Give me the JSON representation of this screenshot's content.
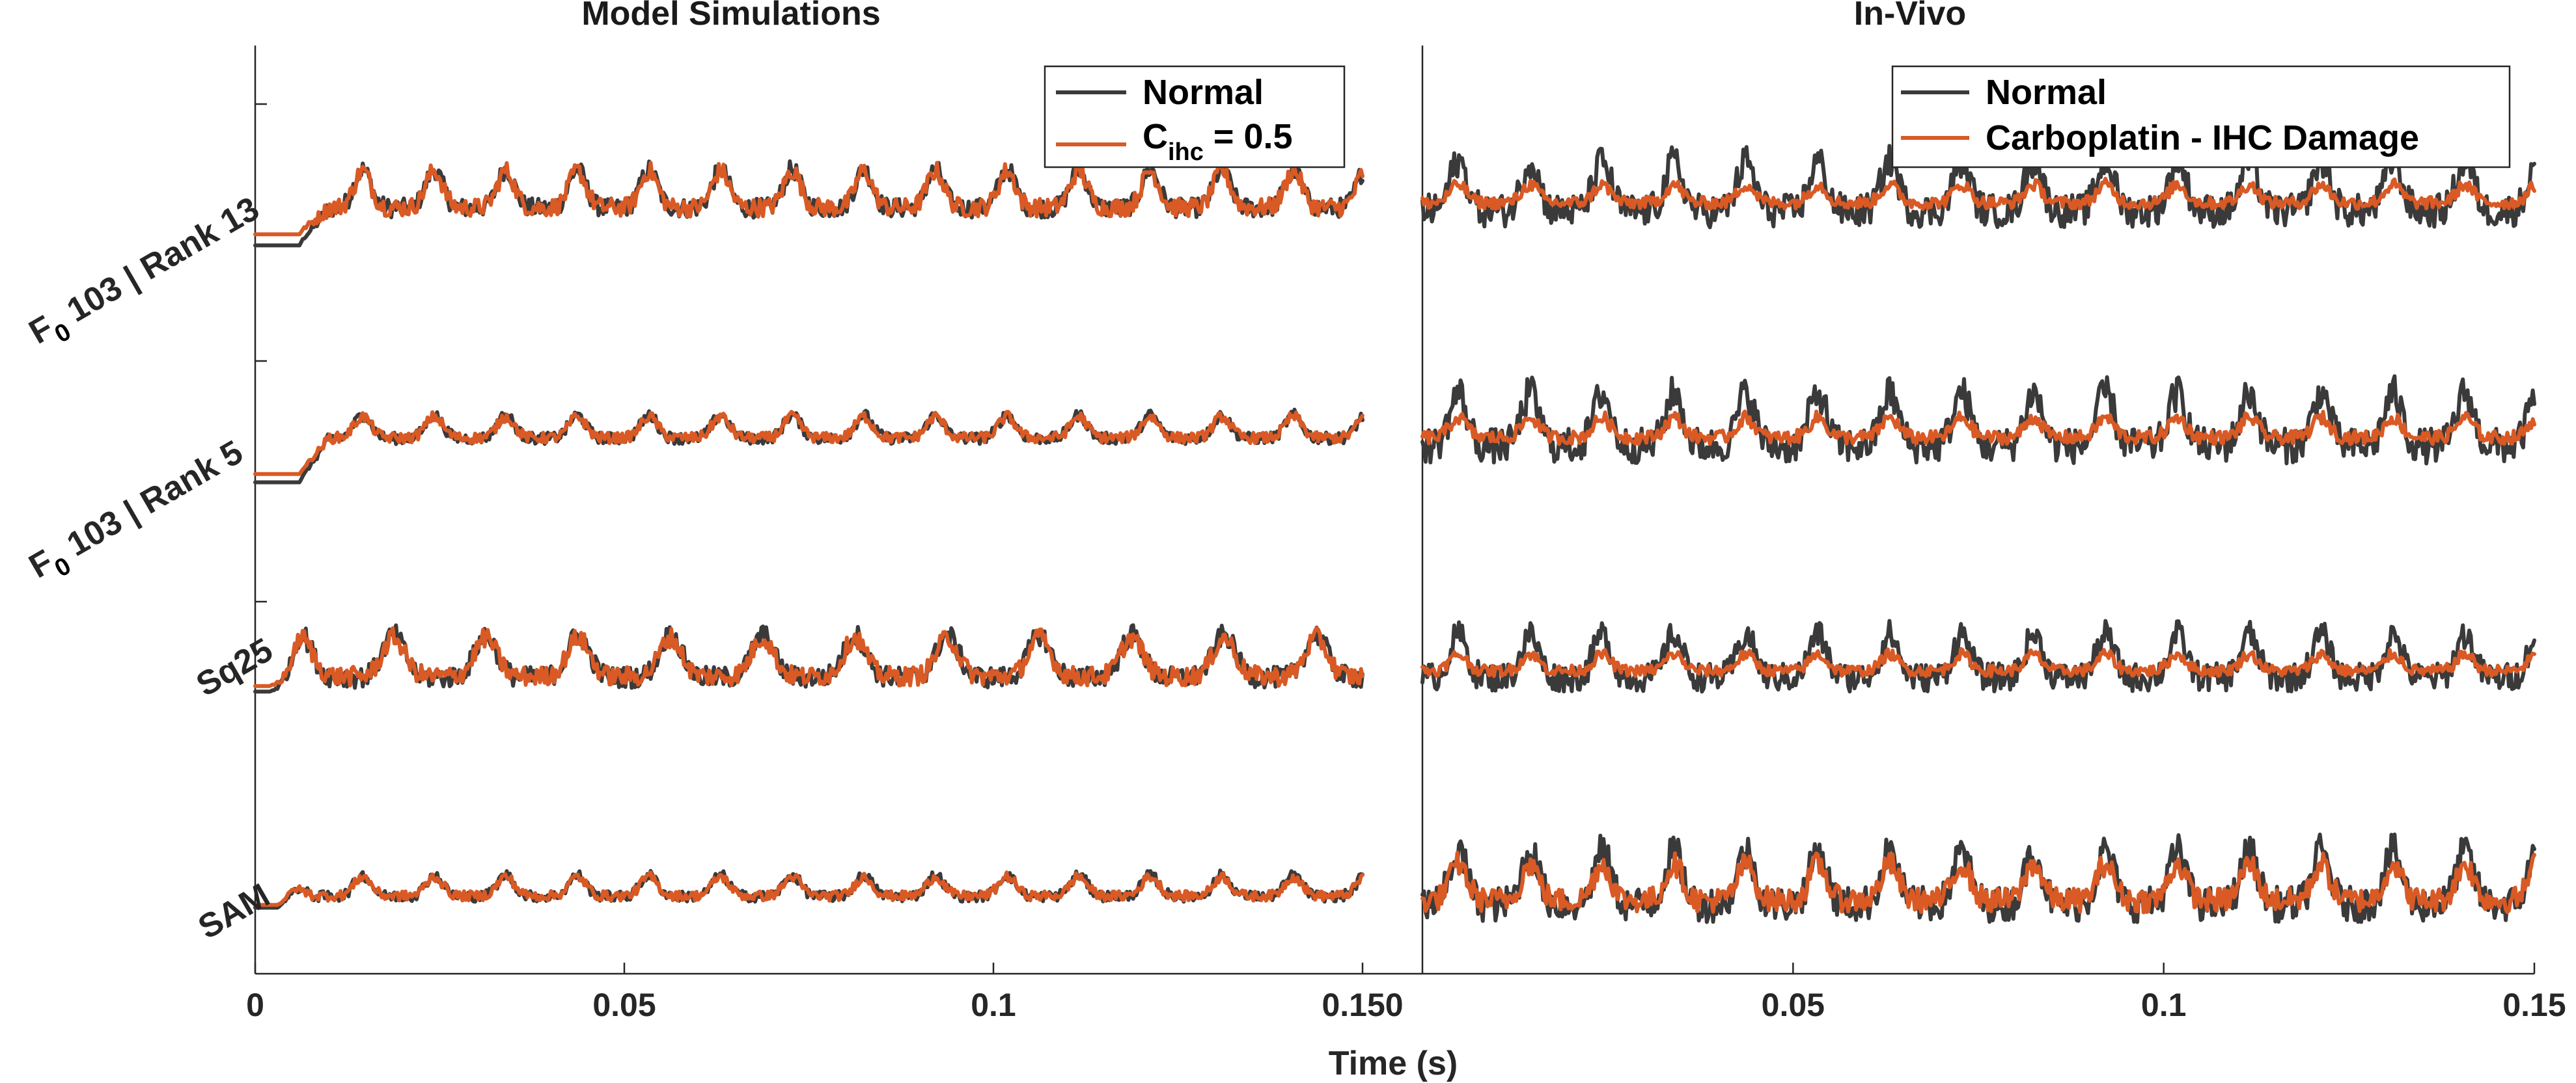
{
  "figure": {
    "xlabel": "Time (s)",
    "row_labels": [
      {
        "main": "F",
        "sub": "0",
        "rest": " 103 | Rank 13"
      },
      {
        "main": "F",
        "sub": "0",
        "rest": " 103 | Rank 5"
      },
      {
        "main": "Sq25",
        "sub": "",
        "rest": ""
      },
      {
        "main": "SAM",
        "sub": "",
        "rest": ""
      }
    ],
    "colors": {
      "normal": "#3a3a3a",
      "impaired": "#d95a25"
    }
  },
  "chart_data": [
    {
      "type": "line",
      "title": "Model Simulations",
      "xlabel": "Time (s)",
      "ylabel": "",
      "xlim": [
        0,
        0.15
      ],
      "xticks": [
        "0",
        "0.05",
        "0.1",
        "0.150"
      ],
      "grid": false,
      "legend_position": "top-right",
      "legend": [
        {
          "series": "Normal",
          "label": "Normal"
        },
        {
          "series": "Impaired",
          "label": "C",
          "sub": "ihc",
          "rest": " = 0.5"
        }
      ],
      "rows": [
        {
          "label": "F0 103 | Rank 13",
          "period_s": 0.0097,
          "Normal": {
            "baseline": -0.85,
            "steady_mean": 0.0,
            "onset_s": 0.006,
            "peak_to_peak": 1.0
          },
          "Impaired": {
            "baseline": -0.65,
            "steady_mean": 0.0,
            "onset_s": 0.006,
            "peak_to_peak": 0.95
          }
        },
        {
          "label": "F0 103 | Rank 5",
          "period_s": 0.0097,
          "Normal": {
            "baseline": -0.9,
            "steady_mean": 0.0,
            "onset_s": 0.006,
            "peak_to_peak": 0.6
          },
          "Impaired": {
            "baseline": -0.75,
            "steady_mean": 0.0,
            "onset_s": 0.006,
            "peak_to_peak": 0.55
          }
        },
        {
          "label": "Sq25",
          "period_s": 0.0125,
          "Normal": {
            "baseline": -0.45,
            "steady_mean": 0.0,
            "onset_s": 0.002,
            "peak_to_peak": 1.1
          },
          "Impaired": {
            "baseline": -0.35,
            "steady_mean": 0.0,
            "onset_s": 0.002,
            "peak_to_peak": 1.0
          }
        },
        {
          "label": "SAM",
          "period_s": 0.0097,
          "Normal": {
            "baseline": -0.3,
            "steady_mean": 0.0,
            "onset_s": 0.003,
            "peak_to_peak": 0.55
          },
          "Impaired": {
            "baseline": -0.25,
            "steady_mean": 0.0,
            "onset_s": 0.003,
            "peak_to_peak": 0.5
          }
        }
      ]
    },
    {
      "type": "line",
      "title": "In-Vivo",
      "xlabel": "Time (s)",
      "ylabel": "",
      "xlim": [
        0,
        0.15
      ],
      "xticks": [
        "0.05",
        "0.1",
        "0.15"
      ],
      "grid": false,
      "legend_position": "top-right",
      "legend": [
        {
          "series": "Normal",
          "label": "Normal"
        },
        {
          "series": "Impaired",
          "label": "Carboplatin - IHC Damage"
        }
      ],
      "rows": [
        {
          "label": "F0 103 | Rank 13",
          "period_s": 0.0097,
          "Normal": {
            "steady_mean": 0.0,
            "peak_to_peak": 1.5
          },
          "Impaired": {
            "steady_mean": 0.0,
            "peak_to_peak": 0.55
          }
        },
        {
          "label": "F0 103 | Rank 5",
          "period_s": 0.0097,
          "Normal": {
            "steady_mean": 0.0,
            "peak_to_peak": 1.6
          },
          "Impaired": {
            "steady_mean": 0.0,
            "peak_to_peak": 0.6
          }
        },
        {
          "label": "Sq25",
          "period_s": 0.0097,
          "Normal": {
            "steady_mean": 0.0,
            "peak_to_peak": 1.3
          },
          "Impaired": {
            "steady_mean": 0.0,
            "peak_to_peak": 0.5
          }
        },
        {
          "label": "SAM",
          "period_s": 0.0097,
          "Normal": {
            "steady_mean": 0.0,
            "peak_to_peak": 1.6
          },
          "Impaired": {
            "steady_mean": 0.0,
            "peak_to_peak": 1.1
          }
        }
      ]
    }
  ]
}
